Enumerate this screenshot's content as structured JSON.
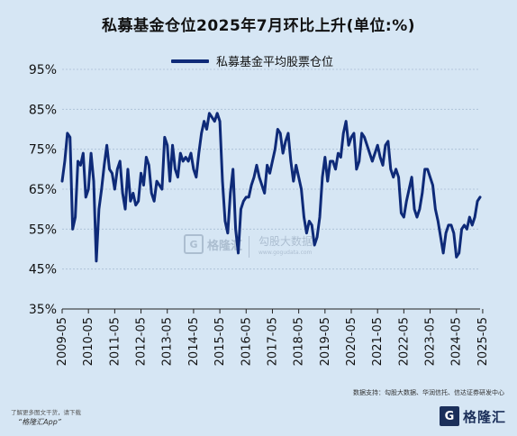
{
  "title": "私募基金仓位2025年7月环比上升(单位:%)",
  "legend": {
    "label": "私募基金平均股票仓位"
  },
  "source": "数据支持：勾股大数据、华润信托、信达证券研发中心",
  "promo": {
    "line": "了解更多图文干货，请下载",
    "app": "“格隆汇App”"
  },
  "brand": {
    "box": "G",
    "name": "格隆汇"
  },
  "watermark": {
    "box": "G",
    "name": "格隆汇",
    "second": "勾股大数据",
    "url": "www.gogudata.com"
  },
  "colors": {
    "background": "#d6e6f4",
    "line": "#0e2a78",
    "gridline": "#a9bdd3"
  },
  "chart_data": {
    "type": "line",
    "title": "私募基金仓位2025年7月环比上升(单位:%)",
    "ylabel": "",
    "xlabel": "",
    "ylim": [
      35,
      95
    ],
    "yticks": [
      35,
      45,
      55,
      65,
      75,
      85,
      95
    ],
    "ytick_labels": [
      "35%",
      "45%",
      "55%",
      "65%",
      "75%",
      "85%",
      "95%"
    ],
    "xtick_labels": [
      "2009-05",
      "2010-05",
      "2011-05",
      "2012-05",
      "2013-05",
      "2014-05",
      "2015-05",
      "2016-05",
      "2017-05",
      "2018-05",
      "2019-05",
      "2020-05",
      "2021-05",
      "2022-05",
      "2023-05",
      "2024-05",
      "2025-05"
    ],
    "x_start": "2009-05",
    "x_end": "2025-07",
    "grid": "horizontal",
    "legend_position": "top-center",
    "series": [
      {
        "name": "私募基金平均股票仓位",
        "values": [
          67,
          72,
          79,
          78,
          55,
          58,
          72,
          71,
          74,
          63,
          65,
          74,
          67,
          47,
          60,
          65,
          71,
          76,
          70,
          69,
          65,
          70,
          72,
          64,
          60,
          70,
          62,
          64,
          61,
          62,
          69,
          66,
          73,
          71,
          64,
          62,
          67,
          66,
          65,
          78,
          76,
          67,
          76,
          70,
          68,
          74,
          72,
          73,
          72,
          74,
          70,
          68,
          74,
          79,
          82,
          80,
          84,
          83,
          82,
          84,
          82,
          67,
          57,
          54,
          64,
          70,
          55,
          49,
          60,
          62,
          63,
          63,
          66,
          68,
          71,
          68,
          66,
          64,
          71,
          69,
          72,
          75,
          80,
          79,
          74,
          77,
          79,
          72,
          67,
          71,
          68,
          65,
          58,
          54,
          57,
          56,
          51,
          53,
          58,
          68,
          73,
          67,
          72,
          72,
          70,
          74,
          73,
          79,
          82,
          76,
          78,
          79,
          70,
          72,
          79,
          78,
          76,
          74,
          72,
          74,
          76,
          73,
          71,
          76,
          77,
          70,
          68,
          70,
          68,
          59,
          58,
          62,
          65,
          68,
          60,
          58,
          60,
          64,
          70,
          70,
          68,
          66,
          60,
          57,
          53,
          49,
          54,
          56,
          56,
          54,
          48,
          49,
          55,
          56,
          55,
          58,
          56,
          58,
          62,
          63
        ]
      }
    ]
  }
}
